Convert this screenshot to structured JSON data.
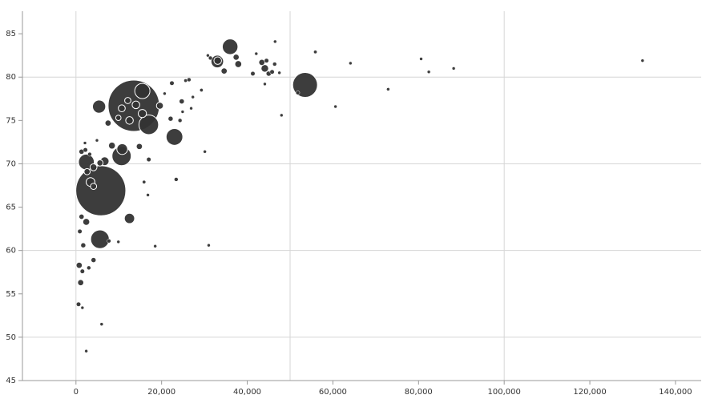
{
  "chart_data": {
    "type": "bubble",
    "color": "#333333",
    "stroke": "#ffffff",
    "xlim": [
      -12500,
      146000
    ],
    "ylim": [
      45,
      87.6
    ],
    "xticks": [
      0,
      {
        "value": 20000,
        "label": "20,000"
      },
      {
        "value": 40000,
        "label": "40,000"
      },
      {
        "value": 60000,
        "label": "60,000"
      },
      {
        "value": 80000,
        "label": "80,000"
      },
      {
        "value": 100000,
        "label": "100,000"
      },
      {
        "value": 120000,
        "label": "120,000"
      },
      {
        "value": 140000,
        "label": "140,000"
      }
    ],
    "yticks": [
      45,
      50,
      55,
      60,
      65,
      70,
      75,
      80,
      85
    ],
    "x_gridlines": [
      0,
      50000,
      100000
    ],
    "y_gridlines": [
      50,
      60,
      70,
      80
    ],
    "x": [
      13500,
      5800,
      53500,
      10650,
      17000,
      2430,
      5600,
      23000,
      36000,
      15500,
      33000,
      5400,
      12500,
      10800,
      600,
      1500,
      6000,
      2400,
      1100,
      750,
      1700,
      1500,
      4100,
      3000,
      900,
      1300,
      2400,
      7700,
      9900,
      18500,
      31000,
      16800,
      15900,
      23400,
      2600,
      4100,
      3400,
      4100,
      5600,
      6700,
      1300,
      2200,
      3200,
      8400,
      4900,
      2100,
      17000,
      14800,
      30100,
      7500,
      9900,
      12500,
      10700,
      12100,
      14000,
      15500,
      19600,
      22100,
      24300,
      24700,
      25600,
      26400,
      26900,
      22400,
      20700,
      24900,
      27300,
      29300,
      30800,
      31400,
      33100,
      34600,
      37400,
      37900,
      41300,
      42100,
      43400,
      44100,
      44500,
      45000,
      44100,
      45800,
      47500,
      46500,
      48000,
      55900,
      60600,
      64100,
      72900,
      80600,
      82400,
      88200,
      132300,
      46400,
      51800
    ],
    "values": [
      76.7,
      66.9,
      79.1,
      70.9,
      74.5,
      70.2,
      61.3,
      73.1,
      83.5,
      78.4,
      81.8,
      76.6,
      63.7,
      71.7,
      53.8,
      53.4,
      51.5,
      48.4,
      56.3,
      58.3,
      60.6,
      57.6,
      58.9,
      58.0,
      62.2,
      63.9,
      63.3,
      61.1,
      61.0,
      60.5,
      60.6,
      66.4,
      67.9,
      68.2,
      69.1,
      69.6,
      67.9,
      67.4,
      70.1,
      70.3,
      71.4,
      71.6,
      71.1,
      72.1,
      72.7,
      72.4,
      70.5,
      72.0,
      71.4,
      74.7,
      75.3,
      75.0,
      76.4,
      77.3,
      76.8,
      75.8,
      76.7,
      75.2,
      75.0,
      77.2,
      79.6,
      79.7,
      76.4,
      79.3,
      78.1,
      76.0,
      77.7,
      78.5,
      82.5,
      82.2,
      81.9,
      80.7,
      82.3,
      81.5,
      80.4,
      82.7,
      81.7,
      81.0,
      81.9,
      80.4,
      79.2,
      80.6,
      80.5,
      84.1,
      75.6,
      82.9,
      76.6,
      81.6,
      78.6,
      82.1,
      80.6,
      81.0,
      81.9,
      81.5,
      78.2
    ],
    "sizes": [
      1370,
      1300,
      320,
      192,
      200,
      130,
      180,
      145,
      127,
      120,
      82,
      90,
      55,
      60,
      10,
      5,
      3,
      5,
      20,
      20,
      12,
      10,
      12,
      8,
      10,
      15,
      25,
      8,
      4,
      4,
      3,
      4,
      6,
      8,
      20,
      25,
      40,
      20,
      20,
      40,
      15,
      10,
      8,
      25,
      4,
      3,
      10,
      20,
      3,
      20,
      15,
      30,
      25,
      20,
      30,
      35,
      25,
      12,
      8,
      15,
      6,
      8,
      4,
      10,
      4,
      5,
      4,
      6,
      3,
      8,
      30,
      20,
      20,
      25,
      10,
      3,
      20,
      30,
      10,
      15,
      3,
      10,
      5,
      1,
      4,
      6,
      5,
      4,
      2,
      5,
      4,
      2,
      4,
      8,
      8
    ]
  }
}
